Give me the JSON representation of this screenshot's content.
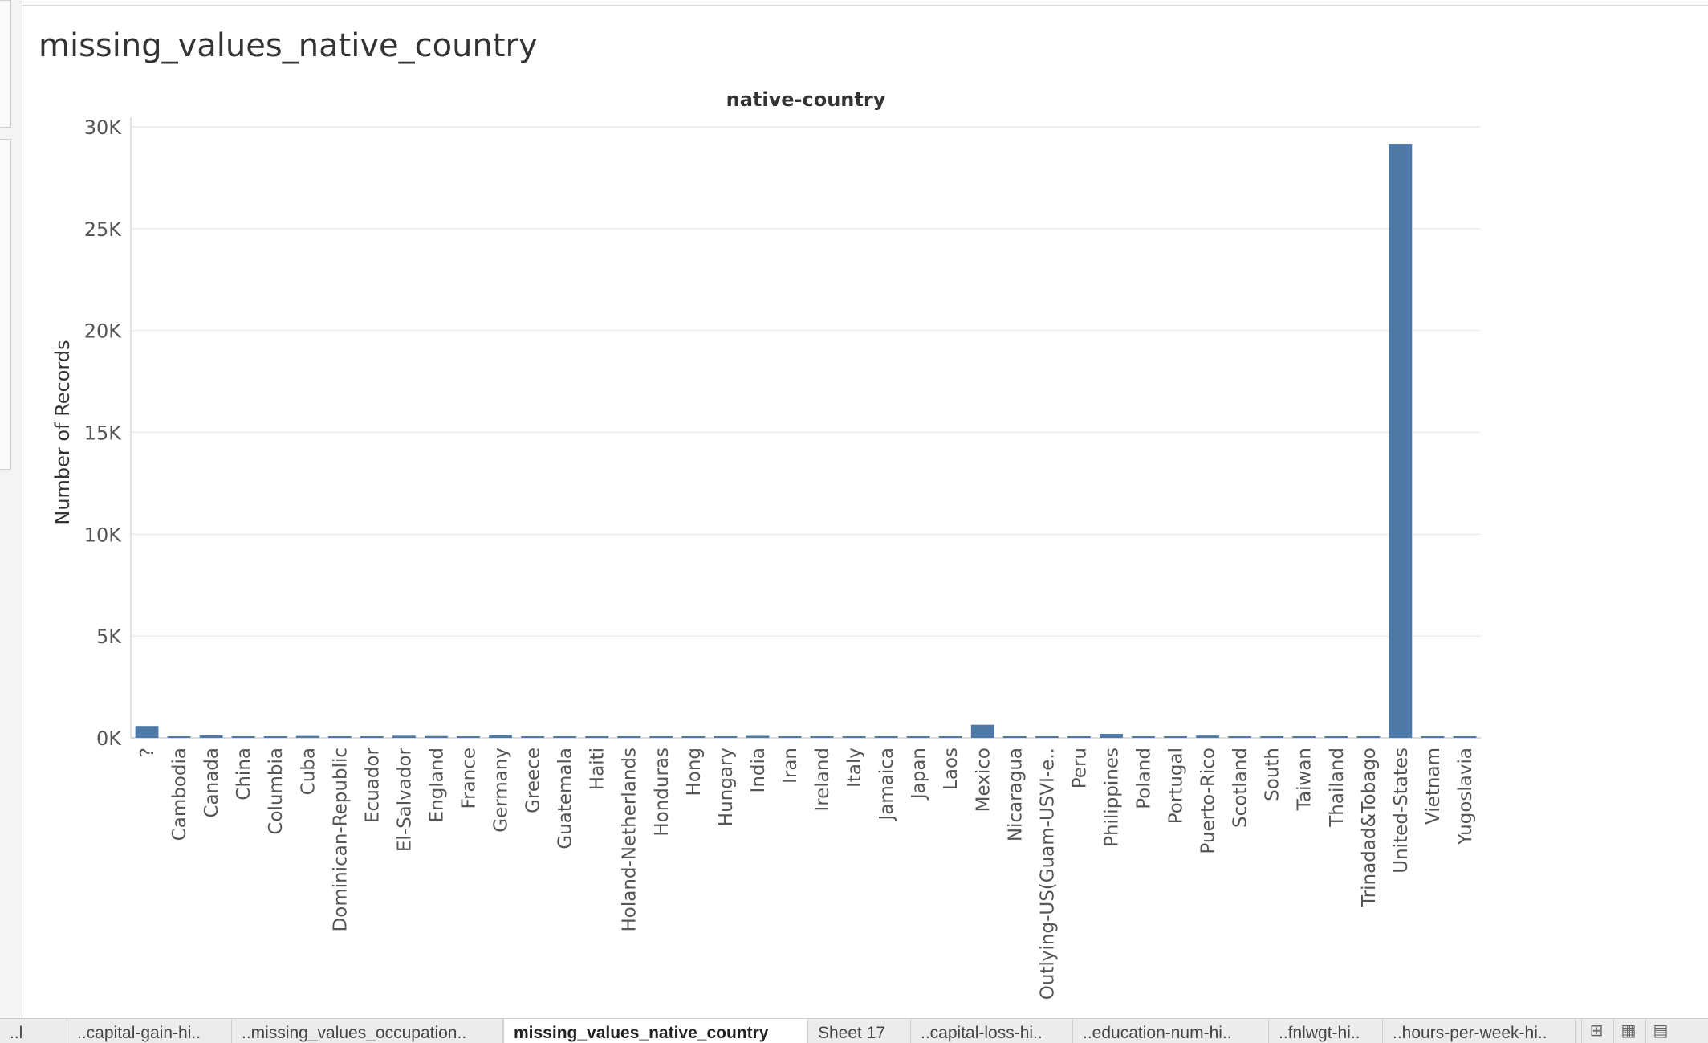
{
  "sheet": {
    "title": "missing_values_native_country"
  },
  "tabs": [
    {
      "label": "..l",
      "active": false
    },
    {
      "label": "..capital-gain-hi..",
      "active": false
    },
    {
      "label": "..missing_values_occupation..",
      "active": false
    },
    {
      "label": "missing_values_native_country",
      "active": true
    },
    {
      "label": "Sheet 17",
      "active": false
    },
    {
      "label": "..capital-loss-hi..",
      "active": false
    },
    {
      "label": "..education-num-hi..",
      "active": false
    },
    {
      "label": "..fnlwgt-hi..",
      "active": false
    },
    {
      "label": "..hours-per-week-hi..",
      "active": false
    }
  ],
  "tab_controls": [
    {
      "icon": "new-sheet-icon"
    },
    {
      "icon": "new-dashboard-icon"
    },
    {
      "icon": "new-story-icon"
    }
  ],
  "chart_data": {
    "type": "bar",
    "title": "native-country",
    "xlabel": "",
    "ylabel": "Number of Records",
    "ylim": [
      0,
      30000
    ],
    "yticks": [
      0,
      5000,
      10000,
      15000,
      20000,
      25000,
      30000
    ],
    "ytick_labels": [
      "0K",
      "5K",
      "10K",
      "15K",
      "20K",
      "25K",
      "30K"
    ],
    "grid": true,
    "bar_color": "#4e79a7",
    "categories": [
      "?",
      "Cambodia",
      "Canada",
      "China",
      "Columbia",
      "Cuba",
      "Dominican-Republic",
      "Ecuador",
      "El-Salvador",
      "England",
      "France",
      "Germany",
      "Greece",
      "Guatemala",
      "Haiti",
      "Holand-Netherlands",
      "Honduras",
      "Hong",
      "Hungary",
      "India",
      "Iran",
      "Ireland",
      "Italy",
      "Jamaica",
      "Japan",
      "Laos",
      "Mexico",
      "Nicaragua",
      "Outlying-US(Guam-USVI-e..",
      "Peru",
      "Philippines",
      "Poland",
      "Portugal",
      "Puerto-Rico",
      "Scotland",
      "South",
      "Taiwan",
      "Thailand",
      "Trinadad&Tobago",
      "United-States",
      "Vietnam",
      "Yugoslavia"
    ],
    "values": [
      583,
      19,
      121,
      75,
      59,
      95,
      70,
      28,
      106,
      90,
      29,
      137,
      29,
      64,
      44,
      1,
      13,
      20,
      13,
      100,
      43,
      24,
      73,
      81,
      62,
      18,
      643,
      34,
      14,
      31,
      198,
      60,
      37,
      114,
      12,
      80,
      51,
      18,
      19,
      29170,
      67,
      16
    ]
  }
}
